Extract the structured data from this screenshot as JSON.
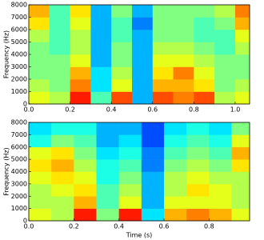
{
  "chart_data": [
    {
      "type": "heatmap",
      "ylabel": "Frequency (Hz)",
      "xbins": [
        0,
        0.1,
        0.2,
        0.3,
        0.4,
        0.5,
        0.6,
        0.7,
        0.8,
        0.9,
        1.0,
        1.07
      ],
      "ybins": [
        0,
        1000,
        2000,
        3000,
        4000,
        5000,
        6000,
        7000,
        8000
      ],
      "z": [
        [
          0.6,
          0.55,
          0.85,
          0.45,
          0.8,
          0.3,
          0.8,
          0.75,
          0.8,
          0.55,
          0.6
        ],
        [
          0.55,
          0.5,
          0.75,
          0.35,
          0.6,
          0.3,
          0.7,
          0.7,
          0.65,
          0.5,
          0.55
        ],
        [
          0.5,
          0.5,
          0.7,
          0.35,
          0.55,
          0.3,
          0.65,
          0.75,
          0.6,
          0.5,
          0.5
        ],
        [
          0.5,
          0.5,
          0.6,
          0.3,
          0.5,
          0.3,
          0.6,
          0.6,
          0.55,
          0.5,
          0.5
        ],
        [
          0.5,
          0.45,
          0.55,
          0.3,
          0.5,
          0.3,
          0.55,
          0.55,
          0.5,
          0.45,
          0.55
        ],
        [
          0.55,
          0.45,
          0.55,
          0.3,
          0.45,
          0.3,
          0.5,
          0.5,
          0.45,
          0.45,
          0.6
        ],
        [
          0.65,
          0.45,
          0.6,
          0.3,
          0.45,
          0.25,
          0.5,
          0.5,
          0.45,
          0.5,
          0.7
        ],
        [
          0.7,
          0.45,
          0.65,
          0.3,
          0.5,
          0.3,
          0.5,
          0.5,
          0.5,
          0.55,
          0.75
        ]
      ],
      "xlim": [
        0,
        1.07
      ],
      "ylim": [
        0,
        8000
      ],
      "xticks": [
        {
          "value": 0,
          "label": "0.0"
        },
        {
          "value": 0.2,
          "label": "0.2"
        },
        {
          "value": 0.4,
          "label": "0.4"
        },
        {
          "value": 0.6,
          "label": "0.6"
        },
        {
          "value": 0.8,
          "label": "0.8"
        },
        {
          "value": 1.0,
          "label": "1.0"
        }
      ],
      "yticks": [
        0,
        1000,
        2000,
        3000,
        4000,
        5000,
        6000,
        7000,
        8000
      ]
    },
    {
      "type": "heatmap",
      "ylabel": "Frequency (Hz)",
      "xlabel": "Time (s)",
      "xbins": [
        0,
        0.1,
        0.2,
        0.3,
        0.4,
        0.5,
        0.6,
        0.7,
        0.8,
        0.9,
        0.98
      ],
      "ybins": [
        0,
        1000,
        2000,
        3000,
        4000,
        5000,
        6000,
        7000,
        8000
      ],
      "z": [
        [
          0.6,
          0.55,
          0.85,
          0.5,
          0.85,
          0.35,
          0.7,
          0.75,
          0.7,
          0.6
        ],
        [
          0.55,
          0.55,
          0.7,
          0.45,
          0.6,
          0.3,
          0.6,
          0.6,
          0.6,
          0.55
        ],
        [
          0.55,
          0.6,
          0.65,
          0.45,
          0.55,
          0.3,
          0.55,
          0.65,
          0.6,
          0.55
        ],
        [
          0.6,
          0.65,
          0.6,
          0.4,
          0.5,
          0.3,
          0.55,
          0.6,
          0.55,
          0.55
        ],
        [
          0.65,
          0.7,
          0.55,
          0.4,
          0.45,
          0.25,
          0.5,
          0.55,
          0.5,
          0.65
        ],
        [
          0.6,
          0.65,
          0.5,
          0.35,
          0.4,
          0.25,
          0.45,
          0.5,
          0.45,
          0.7
        ],
        [
          0.4,
          0.5,
          0.45,
          0.3,
          0.35,
          0.2,
          0.4,
          0.45,
          0.4,
          0.6
        ],
        [
          0.35,
          0.4,
          0.4,
          0.3,
          0.3,
          0.2,
          0.35,
          0.4,
          0.35,
          0.5
        ]
      ],
      "xlim": [
        0,
        0.98
      ],
      "ylim": [
        0,
        8000
      ],
      "xticks": [
        {
          "value": 0,
          "label": "0.0"
        },
        {
          "value": 0.2,
          "label": "0.2"
        },
        {
          "value": 0.4,
          "label": "0.4"
        },
        {
          "value": 0.6,
          "label": "0.6"
        },
        {
          "value": 0.8,
          "label": "0.8"
        }
      ],
      "yticks": [
        0,
        1000,
        2000,
        3000,
        4000,
        5000,
        6000,
        7000,
        8000
      ]
    }
  ]
}
